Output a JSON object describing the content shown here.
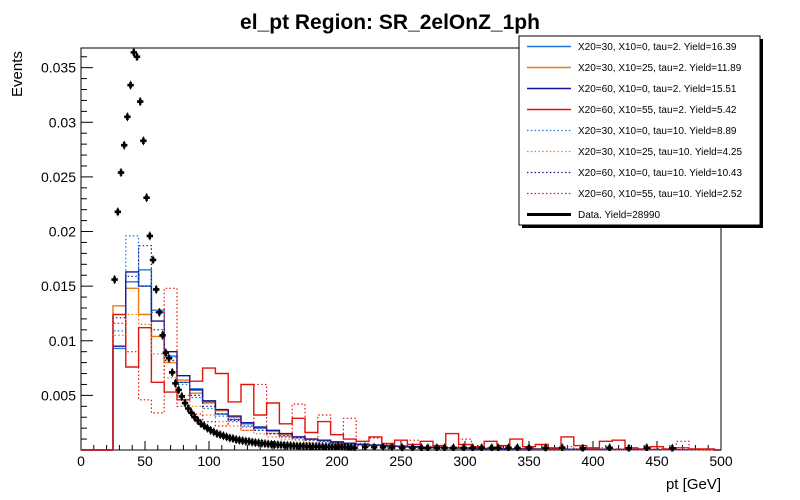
{
  "window": {
    "title": "el_pt Region: SR_2elOnZ_1ph"
  },
  "chart_data": {
    "type": "line",
    "subtype": "overlaid step histograms with data points (ROOT style)",
    "title": "el_pt Region: SR_2elOnZ_1ph",
    "xlabel": "pt [GeV]",
    "ylabel": "Events",
    "xlim": [
      0,
      500
    ],
    "ylim": [
      0,
      0.0368
    ],
    "grid": false,
    "legend_position": "top-right",
    "x_major_ticks": [
      0,
      50,
      100,
      150,
      200,
      250,
      300,
      350,
      400,
      450,
      500
    ],
    "x_tick_labels": [
      "0",
      "50",
      "100",
      "150",
      "200",
      "250",
      "300",
      "350",
      "400",
      "450",
      "500"
    ],
    "x_minor_step": 10,
    "y_major_ticks": [
      0.005,
      0.01,
      0.015,
      0.02,
      0.025,
      0.03,
      0.035
    ],
    "y_tick_labels": [
      "0.005",
      "0.01",
      "0.015",
      "0.02",
      "0.025",
      "0.03",
      "0.035"
    ],
    "y_minor_step": 0.001,
    "signal_bin_start": 25,
    "signal_bin_width": 10,
    "series": [
      {
        "name": "X20=30, X10=0, tau=2. Yield=16.39",
        "color": "#2277dd",
        "style": "solid",
        "values": [
          0.0093,
          0.0154,
          0.0165,
          0.0128,
          0.0086,
          0.0062,
          0.0056,
          0.0044,
          0.0033,
          0.0028,
          0.0024,
          0.002,
          0.0017,
          0.0014,
          0.0012,
          0.001,
          0.0009,
          0.0007,
          0.0006,
          0.0005,
          0.00045,
          0.0004,
          0.00035,
          0.0003,
          0.00025,
          0.00022,
          0.0002,
          0.00018,
          0.00015,
          0.00014,
          0.00012,
          0.00011,
          0.0001,
          9e-05,
          8e-05,
          7e-05,
          7e-05,
          6e-05,
          6e-05,
          5e-05,
          5e-05,
          4e-05,
          4e-05,
          3e-05,
          3e-05,
          2e-05,
          2e-05
        ]
      },
      {
        "name": "X20=30, X10=25, tau=2. Yield=11.89",
        "color": "#ee7a12",
        "style": "solid",
        "values": [
          0.0132,
          0.0148,
          0.0124,
          0.0104,
          0.008,
          0.0064,
          0.0052,
          0.0043,
          0.0036,
          0.003,
          0.0025,
          0.0021,
          0.0017,
          0.0014,
          0.0012,
          0.001,
          0.00085,
          0.0007,
          0.0006,
          0.0005,
          0.00045,
          0.0004,
          0.00034,
          0.0003,
          0.00026,
          0.00022,
          0.0002,
          0.00017,
          0.00015,
          0.00013,
          0.00011,
          0.0001,
          9e-05,
          8e-05,
          7e-05,
          6e-05,
          6e-05,
          5e-05,
          5e-05,
          4e-05,
          4e-05,
          3e-05,
          3e-05,
          3e-05,
          2e-05,
          2e-05,
          2e-05
        ]
      },
      {
        "name": "X20=60, X10=0, tau=2. Yield=15.51",
        "color": "#15159a",
        "style": "solid",
        "values": [
          0.0095,
          0.0163,
          0.015,
          0.0118,
          0.009,
          0.0068,
          0.0055,
          0.0045,
          0.0037,
          0.0031,
          0.0025,
          0.0021,
          0.0018,
          0.0015,
          0.0012,
          0.001,
          0.0009,
          0.00075,
          0.00062,
          0.00052,
          0.00045,
          0.0004,
          0.00035,
          0.0003,
          0.00026,
          0.00023,
          0.0002,
          0.00017,
          0.00015,
          0.00013,
          0.00012,
          0.0001,
          9e-05,
          8e-05,
          7e-05,
          7e-05,
          6e-05,
          5e-05,
          5e-05,
          4e-05,
          4e-05,
          3e-05,
          3e-05,
          3e-05,
          2e-05,
          2e-05,
          2e-05
        ]
      },
      {
        "name": "X20=60, X10=55, tau=2. Yield=5.42",
        "color": "#e2150d",
        "style": "solid",
        "values": [
          0.0124,
          0.0076,
          0.0112,
          0.0062,
          0.0053,
          0.0046,
          0.0063,
          0.0075,
          0.007,
          0.0044,
          0.006,
          0.0032,
          0.0043,
          0.0024,
          0.0029,
          0.0016,
          0.0026,
          0.0014,
          0.001,
          0.0008,
          0.0012,
          0.0006,
          0.0009,
          0.0005,
          0.0008,
          0.0004,
          0.0015,
          0.0005,
          0.0003,
          0.0008,
          0.0004,
          0.001,
          0.0003,
          0.0005,
          0.0002,
          0.0012,
          0.0004,
          0.0002,
          0.0008,
          0.0009,
          0.0002,
          0.0001,
          0.0003,
          0.0001,
          0.0002,
          0.0001,
          0.0001
        ]
      },
      {
        "name": "X20=30, X10=0, tau=10. Yield=8.89",
        "color": "#2277dd",
        "style": "dotted",
        "values": [
          0.0109,
          0.0196,
          0.015,
          0.0126,
          0.0085,
          0.006,
          0.0048,
          0.0038,
          0.0031,
          0.0026,
          0.0021,
          0.0018,
          0.0015,
          0.0012,
          0.001,
          0.0009,
          0.0007,
          0.0006,
          0.0005,
          0.00045,
          0.0004,
          0.00034,
          0.0003,
          0.00025,
          0.00022,
          0.00019,
          0.00017,
          0.00014,
          0.00013,
          0.00011,
          0.0001,
          9e-05,
          8e-05,
          7e-05,
          6e-05,
          5e-05,
          5e-05,
          4e-05,
          4e-05,
          3e-05,
          3e-05,
          3e-05,
          2e-05,
          2e-05,
          2e-05,
          1e-05,
          1e-05
        ]
      },
      {
        "name": "X20=30, X10=25, tau=10. Yield=4.25",
        "color": "#ee7a12",
        "style": "dotted",
        "values": [
          0.0105,
          0.0124,
          0.0115,
          0.0088,
          0.0066,
          0.005,
          0.004,
          0.0032,
          0.0026,
          0.0022,
          0.0018,
          0.0015,
          0.0012,
          0.001,
          0.0009,
          0.0007,
          0.0006,
          0.0005,
          0.00045,
          0.00038,
          0.00033,
          0.00028,
          0.00024,
          0.0002,
          0.00018,
          0.00015,
          0.00013,
          0.00011,
          0.0001,
          8e-05,
          7e-05,
          6e-05,
          6e-05,
          5e-05,
          4e-05,
          4e-05,
          3e-05,
          3e-05,
          3e-05,
          2e-05,
          2e-05,
          2e-05,
          1e-05,
          1e-05,
          1e-05,
          1e-05,
          1e-05
        ]
      },
      {
        "name": "X20=60, X10=0, tau=10. Yield=10.43",
        "color": "#15159a",
        "style": "dotted",
        "values": [
          0.0121,
          0.0159,
          0.0187,
          0.011,
          0.0082,
          0.0062,
          0.005,
          0.004,
          0.0033,
          0.0027,
          0.0022,
          0.0018,
          0.0015,
          0.0013,
          0.0011,
          0.0009,
          0.0008,
          0.00065,
          0.00055,
          0.00046,
          0.0004,
          0.00034,
          0.0003,
          0.00025,
          0.00022,
          0.00019,
          0.00016,
          0.00014,
          0.00012,
          0.00011,
          9e-05,
          8e-05,
          7e-05,
          7e-05,
          6e-05,
          5e-05,
          5e-05,
          4e-05,
          4e-05,
          3e-05,
          3e-05,
          2e-05,
          2e-05,
          2e-05,
          2e-05,
          1e-05,
          1e-05
        ]
      },
      {
        "name": "X20=60, X10=55, tau=10. Yield=2.52",
        "color": "#e2150d",
        "style": "dotted",
        "values": [
          0.0116,
          0.009,
          0.0046,
          0.0034,
          0.0148,
          0.004,
          0.0033,
          0.0026,
          0.0022,
          0.0028,
          0.0018,
          0.006,
          0.0015,
          0.0012,
          0.0042,
          0.001,
          0.0032,
          0.0014,
          0.0029,
          0.0006,
          0.0011,
          0.0005,
          0.0004,
          0.0009,
          0.0003,
          0.0003,
          0.0002,
          0.001,
          0.0002,
          0.0002,
          0.0003,
          0.0001,
          0.0002,
          0.0001,
          0.0001,
          0.0003,
          0.0001,
          0.0001,
          0.0002,
          0.0001,
          0.0001,
          0.0001,
          0.0001,
          0.0001,
          0.0008,
          0.0001,
          0.0
        ]
      }
    ],
    "data_series": {
      "name": "Data. Yield=28990",
      "color": "#000000",
      "marker": "cross",
      "bin_start": 25,
      "bin_width": 2.5,
      "values": [
        0.0156,
        0.0218,
        0.0254,
        0.0279,
        0.0305,
        0.0334,
        0.0364,
        0.036,
        0.0319,
        0.0283,
        0.0231,
        0.0196,
        0.0174,
        0.0147,
        0.0126,
        0.0105,
        0.0089,
        0.0084,
        0.0071,
        0.0061,
        0.0055,
        0.0049,
        0.0043,
        0.0038,
        0.0034,
        0.003,
        0.0027,
        0.0024,
        0.0022,
        0.002,
        0.0018,
        0.00165,
        0.0015,
        0.0014,
        0.0013,
        0.0012,
        0.0011,
        0.00105,
        0.00095,
        0.0009,
        0.00085,
        0.0008,
        0.00078,
        0.00072,
        0.00068,
        0.00065,
        0.00062,
        0.00058,
        0.00055,
        0.00052,
        0.0005,
        0.00048,
        0.00046,
        0.00044,
        0.00042,
        0.0004,
        0.00038,
        0.00037,
        0.00036,
        0.00035,
        0.00034,
        0.00033,
        0.00032,
        0.00031,
        0.0003,
        0.00029,
        0.00028,
        0.00028,
        0.00027,
        0.00026,
        0.0003,
        0.00025,
        0.00024,
        0.00023,
        0.00022,
        0.00021
      ],
      "extra_points": [
        [
          222,
          0.00028
        ],
        [
          229,
          0.00026
        ],
        [
          236,
          0.00024
        ],
        [
          243,
          0.00022
        ],
        [
          251,
          0.0002
        ],
        [
          259,
          0.0002
        ],
        [
          266,
          0.0002
        ],
        [
          271,
          0.0002
        ],
        [
          278,
          0.0002
        ],
        [
          284,
          0.0002
        ],
        [
          291,
          0.0002
        ],
        [
          299,
          0.0002
        ],
        [
          306,
          0.0002
        ],
        [
          313,
          0.0002
        ],
        [
          321,
          0.0002
        ],
        [
          326,
          0.0002
        ],
        [
          334,
          0.0002
        ],
        [
          341,
          0.0002
        ],
        [
          350,
          0.0002
        ],
        [
          363,
          0.00018
        ],
        [
          376,
          0.0002
        ],
        [
          392,
          0.00015
        ],
        [
          413,
          0.0002
        ],
        [
          428,
          0.00015
        ],
        [
          442,
          0.0002
        ],
        [
          462,
          0.00015
        ]
      ]
    }
  },
  "legend": {
    "entries": [
      {
        "label": "X20=30, X10=0, tau=2. Yield=16.39",
        "color": "#2277dd",
        "style": "solid",
        "width": 1.4
      },
      {
        "label": "X20=30, X10=25, tau=2. Yield=11.89",
        "color": "#ee7a12",
        "style": "solid",
        "width": 1.4
      },
      {
        "label": "X20=60, X10=0, tau=2. Yield=15.51",
        "color": "#15159a",
        "style": "solid",
        "width": 1.4
      },
      {
        "label": "X20=60, X10=55, tau=2. Yield=5.42",
        "color": "#e2150d",
        "style": "solid",
        "width": 1.4
      },
      {
        "label": "X20=30, X10=0, tau=10. Yield=8.89",
        "color": "#2277dd",
        "style": "dotted",
        "width": 1.2
      },
      {
        "label": "X20=30, X10=25, tau=10. Yield=4.25",
        "color": "#ee7a12",
        "style": "dotted",
        "width": 1.2
      },
      {
        "label": "X20=60, X10=0, tau=10. Yield=10.43",
        "color": "#15159a",
        "style": "dotted",
        "width": 1.2
      },
      {
        "label": "X20=60, X10=55, tau=10. Yield=2.52",
        "color": "#e2150d",
        "style": "dotted",
        "width": 1.2
      },
      {
        "label": "Data. Yield=28990",
        "color": "#000000",
        "style": "solid",
        "width": 3
      }
    ]
  }
}
